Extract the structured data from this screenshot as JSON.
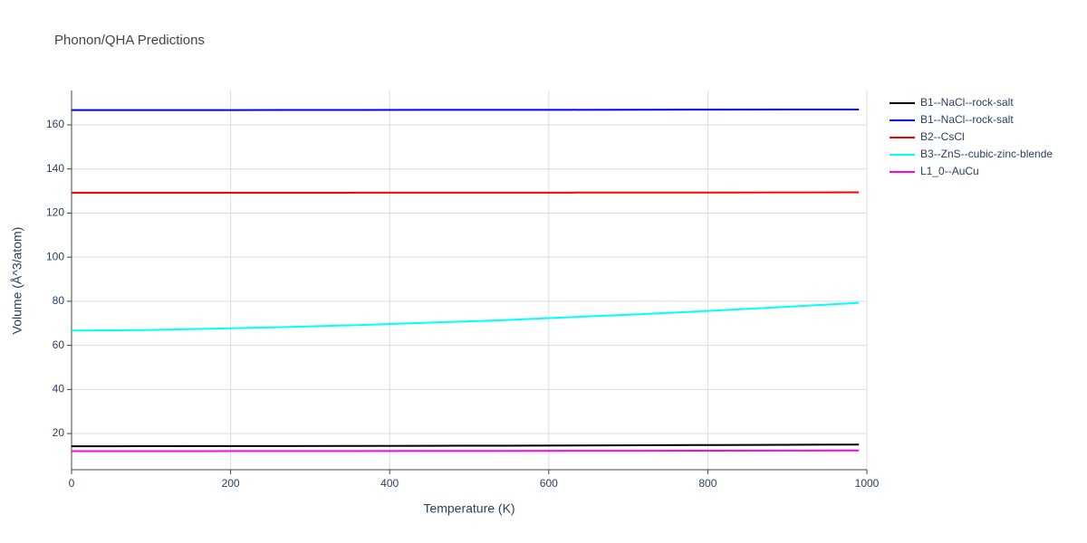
{
  "chart_data": {
    "type": "line",
    "title": "Phonon/QHA Predictions",
    "xlabel": "Temperature (K)",
    "ylabel": "Volume (Å^3/atom)",
    "x": [
      0,
      90,
      180,
      270,
      360,
      450,
      540,
      630,
      720,
      810,
      900,
      990
    ],
    "series": [
      {
        "name": "B1--NaCl--rock-salt",
        "color": "#000000",
        "values": [
          14.2,
          14.25,
          14.3,
          14.35,
          14.4,
          14.45,
          14.5,
          14.6,
          14.7,
          14.8,
          14.9,
          15.0
        ]
      },
      {
        "name": "B1--NaCl--rock-salt",
        "color": "#0000ff",
        "values": [
          166.7,
          166.72,
          166.74,
          166.76,
          166.78,
          166.8,
          166.82,
          166.85,
          166.88,
          166.92,
          166.96,
          167.0
        ]
      },
      {
        "name": "B2--CsCl",
        "color": "#ff0000",
        "values": [
          129.2,
          129.21,
          129.22,
          129.23,
          129.24,
          129.25,
          129.27,
          129.29,
          129.31,
          129.34,
          129.37,
          129.4
        ]
      },
      {
        "name": "B3--ZnS--cubic-zinc-blende",
        "color": "#00ffff",
        "values": [
          66.7,
          66.9,
          67.6,
          68.3,
          69.2,
          70.3,
          71.4,
          72.8,
          74.2,
          75.8,
          77.5,
          79.3
        ]
      },
      {
        "name": "L1_0--AuCu",
        "color": "#ff00ff",
        "values": [
          12.0,
          12.02,
          12.04,
          12.06,
          12.08,
          12.1,
          12.13,
          12.16,
          12.19,
          12.22,
          12.26,
          12.3
        ]
      }
    ],
    "xlim": [
      0,
      1000
    ],
    "xticks": [
      0,
      200,
      400,
      600,
      800,
      1000
    ],
    "ylim": [
      3.6,
      175.6
    ],
    "yticks": [
      20,
      40,
      60,
      80,
      100,
      120,
      140,
      160
    ],
    "grid": true,
    "legend": "right"
  }
}
